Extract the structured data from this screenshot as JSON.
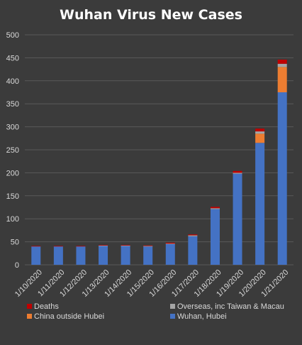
{
  "chart_data": {
    "type": "bar",
    "stacked": true,
    "title": "Wuhan Virus New Cases",
    "xlabel": "",
    "ylabel": "",
    "ylim": [
      0,
      500
    ],
    "yticks": [
      0,
      50,
      100,
      150,
      200,
      250,
      300,
      350,
      400,
      450,
      500
    ],
    "yticks_text": [
      "0",
      "50",
      "100",
      "150",
      "200",
      "250",
      "300",
      "350",
      "400",
      "450",
      "500"
    ],
    "grid": true,
    "legend_position": "bottom",
    "categories": [
      "1/10/2020",
      "1/11/2020",
      "1/12/2020",
      "1/13/2020",
      "1/14/2020",
      "1/15/2020",
      "1/16/2020",
      "1/17/2020",
      "1/18/2020",
      "1/19/2020",
      "1/20/2020",
      "1/21/2020"
    ],
    "series": [
      {
        "name": "Wuhan, Hubei",
        "color": "#4472c4",
        "values": [
          40,
          40,
          40,
          41,
          41,
          40,
          45,
          62,
          121,
          198,
          265,
          375
        ]
      },
      {
        "name": "China outside Hubei",
        "color": "#ed7d31",
        "values": [
          0,
          0,
          0,
          0,
          0,
          0,
          0,
          0,
          0,
          0,
          20,
          55
        ]
      },
      {
        "name": "Overseas, inc Taiwan & Macau",
        "color": "#a5a5a5",
        "values": [
          0,
          0,
          0,
          1,
          1,
          1,
          1,
          2,
          2,
          2,
          5,
          7
        ]
      },
      {
        "name": "Deaths",
        "color": "#c00000",
        "values": [
          1,
          1,
          1,
          1,
          1,
          1,
          2,
          2,
          3,
          4,
          6,
          9
        ]
      }
    ],
    "legend_order": [
      "Deaths",
      "Overseas, inc Taiwan & Macau",
      "China outside Hubei",
      "Wuhan, Hubei"
    ],
    "background": "#3b3b3b",
    "gridline_color": "#5a5a5a",
    "text_color": "#d9d9d9"
  }
}
